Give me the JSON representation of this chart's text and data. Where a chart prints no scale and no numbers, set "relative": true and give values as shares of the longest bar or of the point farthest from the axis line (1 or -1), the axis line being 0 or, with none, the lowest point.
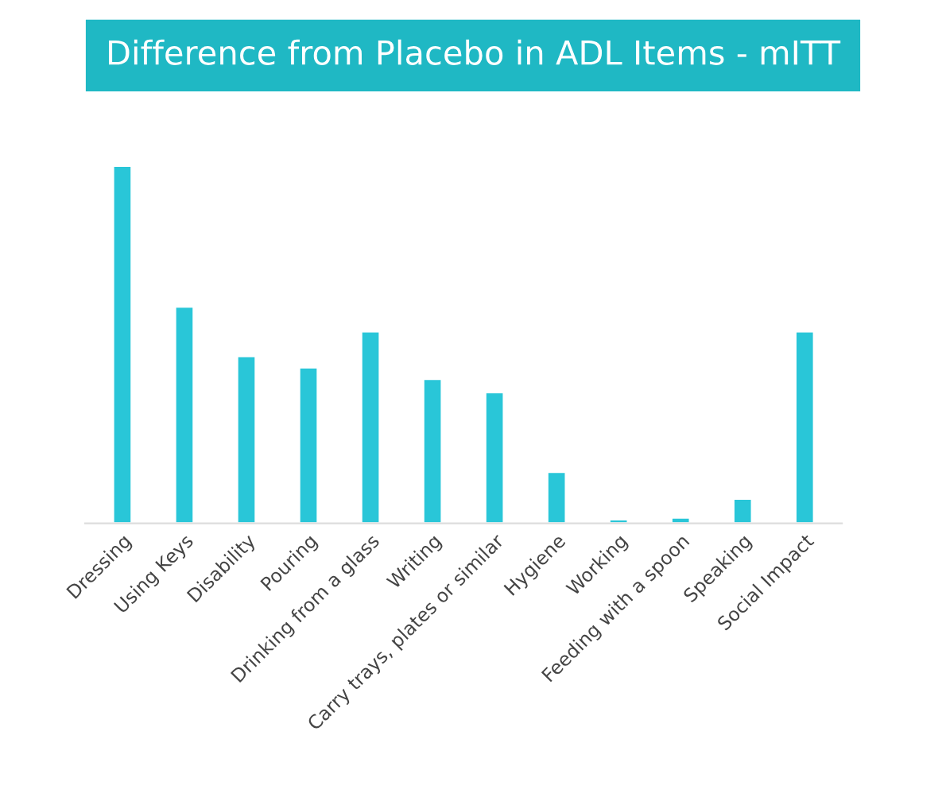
{
  "chart_data": {
    "type": "bar",
    "title": "Difference from Placebo in ADL Items - mITT",
    "categories": [
      "Dressing",
      "Using Keys",
      "Disability",
      "Pouring",
      "Drinking from a glass",
      "Writing",
      "Carry trays, plates or similar",
      "Hygiene",
      "Working",
      "Feeding with a spoon",
      "Speaking",
      "Social Impact"
    ],
    "values": [
      1,
      0.606,
      0.468,
      0.436,
      0.537,
      0.404,
      0.367,
      0.144,
      0.011,
      0.016,
      0.069,
      0.537
    ],
    "color": "#29c6d8",
    "relative": true,
    "grid": false,
    "legend": false
  }
}
